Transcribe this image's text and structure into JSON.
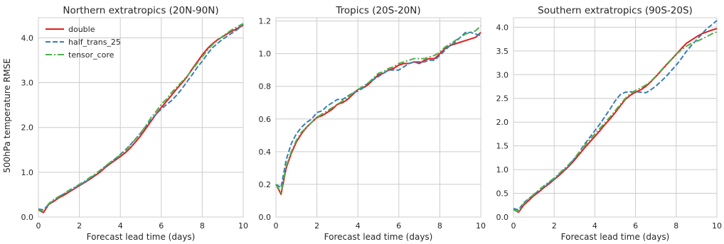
{
  "chart_data": [
    {
      "type": "line",
      "title": "Northern extratropics (20N-90N)",
      "xlabel": "Forecast lead time (days)",
      "ylabel": "500hPa temperature RMSE",
      "xlim": [
        0,
        10
      ],
      "ylim": [
        0,
        4.45
      ],
      "xticks": [
        "0",
        "2",
        "4",
        "6",
        "8",
        "10"
      ],
      "yticks": [
        "0.0",
        "1.0",
        "2.0",
        "3.0",
        "4.0"
      ],
      "grid": true,
      "legend": "top-left",
      "x": [
        0,
        0.25,
        0.5,
        0.75,
        1,
        1.25,
        1.5,
        1.75,
        2,
        2.25,
        2.5,
        2.75,
        3,
        3.25,
        3.5,
        3.75,
        4,
        4.25,
        4.5,
        4.75,
        5,
        5.25,
        5.5,
        5.75,
        6,
        6.25,
        6.5,
        6.75,
        7,
        7.25,
        7.5,
        7.75,
        8,
        8.25,
        8.5,
        8.75,
        9,
        9.25,
        9.5,
        9.75,
        10
      ],
      "series": [
        {
          "name": "double",
          "color": "#e41a1c",
          "dash": "solid",
          "values": [
            0.16,
            0.1,
            0.28,
            0.35,
            0.43,
            0.49,
            0.56,
            0.63,
            0.7,
            0.77,
            0.84,
            0.92,
            1.0,
            1.1,
            1.19,
            1.27,
            1.35,
            1.44,
            1.55,
            1.68,
            1.82,
            1.98,
            2.14,
            2.3,
            2.45,
            2.58,
            2.72,
            2.86,
            2.99,
            3.13,
            3.3,
            3.46,
            3.62,
            3.76,
            3.87,
            3.96,
            4.03,
            4.1,
            4.16,
            4.22,
            4.28
          ]
        },
        {
          "name": "half_trans_25",
          "color": "#377eb8",
          "dash": "dashed",
          "values": [
            0.18,
            0.16,
            0.28,
            0.37,
            0.45,
            0.52,
            0.58,
            0.65,
            0.71,
            0.78,
            0.85,
            0.94,
            1.03,
            1.12,
            1.21,
            1.3,
            1.4,
            1.5,
            1.62,
            1.75,
            1.88,
            2.03,
            2.17,
            2.3,
            2.41,
            2.51,
            2.6,
            2.72,
            2.86,
            3.02,
            3.17,
            3.34,
            3.48,
            3.64,
            3.78,
            3.88,
            3.97,
            4.05,
            4.12,
            4.2,
            4.3
          ]
        },
        {
          "name": "tensor_core",
          "color": "#4daf4a",
          "dash": "dashdot",
          "values": [
            0.17,
            0.12,
            0.3,
            0.39,
            0.46,
            0.52,
            0.6,
            0.66,
            0.73,
            0.8,
            0.88,
            0.95,
            1.04,
            1.13,
            1.22,
            1.3,
            1.38,
            1.48,
            1.61,
            1.74,
            1.88,
            2.04,
            2.22,
            2.36,
            2.52,
            2.63,
            2.78,
            2.9,
            3.02,
            3.14,
            3.28,
            3.43,
            3.58,
            3.72,
            3.85,
            3.94,
            4.04,
            4.12,
            4.2,
            4.26,
            4.32
          ]
        }
      ]
    },
    {
      "type": "line",
      "title": "Tropics (20S-20N)",
      "xlabel": "Forecast lead time (days)",
      "ylabel": "",
      "xlim": [
        0,
        10
      ],
      "ylim": [
        0,
        1.22
      ],
      "xticks": [
        "0",
        "2",
        "4",
        "6",
        "8",
        "10"
      ],
      "yticks": [
        "0.0",
        "0.2",
        "0.4",
        "0.6",
        "0.8",
        "1.0",
        "1.2"
      ],
      "grid": true,
      "x": [
        0,
        0.25,
        0.5,
        0.75,
        1,
        1.25,
        1.5,
        1.75,
        2,
        2.25,
        2.5,
        2.75,
        3,
        3.25,
        3.5,
        3.75,
        4,
        4.25,
        4.5,
        4.75,
        5,
        5.25,
        5.5,
        5.75,
        6,
        6.25,
        6.5,
        6.75,
        7,
        7.25,
        7.5,
        7.75,
        8,
        8.25,
        8.5,
        8.75,
        9,
        9.25,
        9.5,
        9.75,
        10
      ],
      "series": [
        {
          "name": "double",
          "color": "#e41a1c",
          "dash": "solid",
          "values": [
            0.2,
            0.14,
            0.3,
            0.39,
            0.46,
            0.51,
            0.55,
            0.58,
            0.61,
            0.62,
            0.64,
            0.66,
            0.69,
            0.7,
            0.72,
            0.75,
            0.78,
            0.79,
            0.81,
            0.84,
            0.87,
            0.88,
            0.9,
            0.91,
            0.93,
            0.94,
            0.94,
            0.95,
            0.94,
            0.96,
            0.97,
            0.97,
            1.0,
            1.03,
            1.05,
            1.06,
            1.07,
            1.08,
            1.09,
            1.1,
            1.13
          ]
        },
        {
          "name": "half_trans_25",
          "color": "#377eb8",
          "dash": "dashed",
          "values": [
            0.2,
            0.18,
            0.35,
            0.45,
            0.51,
            0.55,
            0.58,
            0.6,
            0.64,
            0.65,
            0.68,
            0.7,
            0.72,
            0.72,
            0.74,
            0.76,
            0.77,
            0.79,
            0.82,
            0.84,
            0.86,
            0.88,
            0.9,
            0.9,
            0.9,
            0.92,
            0.94,
            0.95,
            0.95,
            0.95,
            0.96,
            0.96,
            0.99,
            1.02,
            1.05,
            1.07,
            1.1,
            1.13,
            1.13,
            1.12,
            1.11
          ]
        },
        {
          "name": "tensor_core",
          "color": "#4daf4a",
          "dash": "dashdot",
          "values": [
            0.2,
            0.15,
            0.31,
            0.4,
            0.47,
            0.52,
            0.55,
            0.58,
            0.61,
            0.63,
            0.65,
            0.67,
            0.69,
            0.71,
            0.73,
            0.76,
            0.78,
            0.8,
            0.82,
            0.85,
            0.88,
            0.89,
            0.91,
            0.92,
            0.94,
            0.95,
            0.96,
            0.97,
            0.97,
            0.97,
            0.98,
            0.99,
            1.01,
            1.04,
            1.06,
            1.08,
            1.1,
            1.12,
            1.13,
            1.14,
            1.17
          ]
        }
      ]
    },
    {
      "type": "line",
      "title": "Southern extratropics (90S-20S)",
      "xlabel": "Forecast lead time (days)",
      "ylabel": "",
      "xlim": [
        0,
        10
      ],
      "ylim": [
        0,
        4.2
      ],
      "xticks": [
        "0",
        "2",
        "4",
        "6",
        "8",
        "10"
      ],
      "yticks": [
        "0.0",
        "0.5",
        "1.0",
        "1.5",
        "2.0",
        "2.5",
        "3.0",
        "3.5",
        "4.0"
      ],
      "grid": true,
      "x": [
        0,
        0.25,
        0.5,
        0.75,
        1,
        1.25,
        1.5,
        1.75,
        2,
        2.25,
        2.5,
        2.75,
        3,
        3.25,
        3.5,
        3.75,
        4,
        4.25,
        4.5,
        4.75,
        5,
        5.25,
        5.5,
        5.75,
        6,
        6.25,
        6.5,
        6.75,
        7,
        7.25,
        7.5,
        7.75,
        8,
        8.25,
        8.5,
        8.75,
        9,
        9.25,
        9.5,
        9.75,
        10
      ],
      "series": [
        {
          "name": "double",
          "color": "#e41a1c",
          "dash": "solid",
          "values": [
            0.16,
            0.1,
            0.25,
            0.35,
            0.45,
            0.53,
            0.62,
            0.7,
            0.79,
            0.88,
            0.98,
            1.08,
            1.2,
            1.33,
            1.46,
            1.58,
            1.7,
            1.82,
            1.95,
            2.07,
            2.2,
            2.34,
            2.48,
            2.57,
            2.63,
            2.68,
            2.75,
            2.85,
            2.96,
            3.08,
            3.2,
            3.31,
            3.43,
            3.55,
            3.66,
            3.73,
            3.8,
            3.86,
            3.9,
            3.94,
            3.97
          ]
        },
        {
          "name": "half_trans_25",
          "color": "#377eb8",
          "dash": "dashed",
          "values": [
            0.18,
            0.15,
            0.3,
            0.39,
            0.47,
            0.56,
            0.64,
            0.72,
            0.8,
            0.9,
            1.0,
            1.1,
            1.23,
            1.38,
            1.54,
            1.68,
            1.82,
            1.96,
            2.12,
            2.28,
            2.45,
            2.58,
            2.63,
            2.64,
            2.64,
            2.63,
            2.62,
            2.68,
            2.76,
            2.86,
            2.96,
            3.08,
            3.2,
            3.34,
            3.49,
            3.62,
            3.73,
            3.85,
            3.97,
            4.05,
            4.14
          ]
        },
        {
          "name": "tensor_core",
          "color": "#4daf4a",
          "dash": "dashdot",
          "values": [
            0.15,
            0.12,
            0.28,
            0.38,
            0.48,
            0.57,
            0.66,
            0.74,
            0.82,
            0.92,
            1.02,
            1.12,
            1.24,
            1.38,
            1.51,
            1.63,
            1.75,
            1.87,
            1.99,
            2.11,
            2.24,
            2.37,
            2.5,
            2.6,
            2.67,
            2.72,
            2.78,
            2.86,
            2.97,
            3.09,
            3.21,
            3.32,
            3.43,
            3.52,
            3.6,
            3.66,
            3.7,
            3.75,
            3.8,
            3.86,
            3.9
          ]
        }
      ]
    }
  ]
}
